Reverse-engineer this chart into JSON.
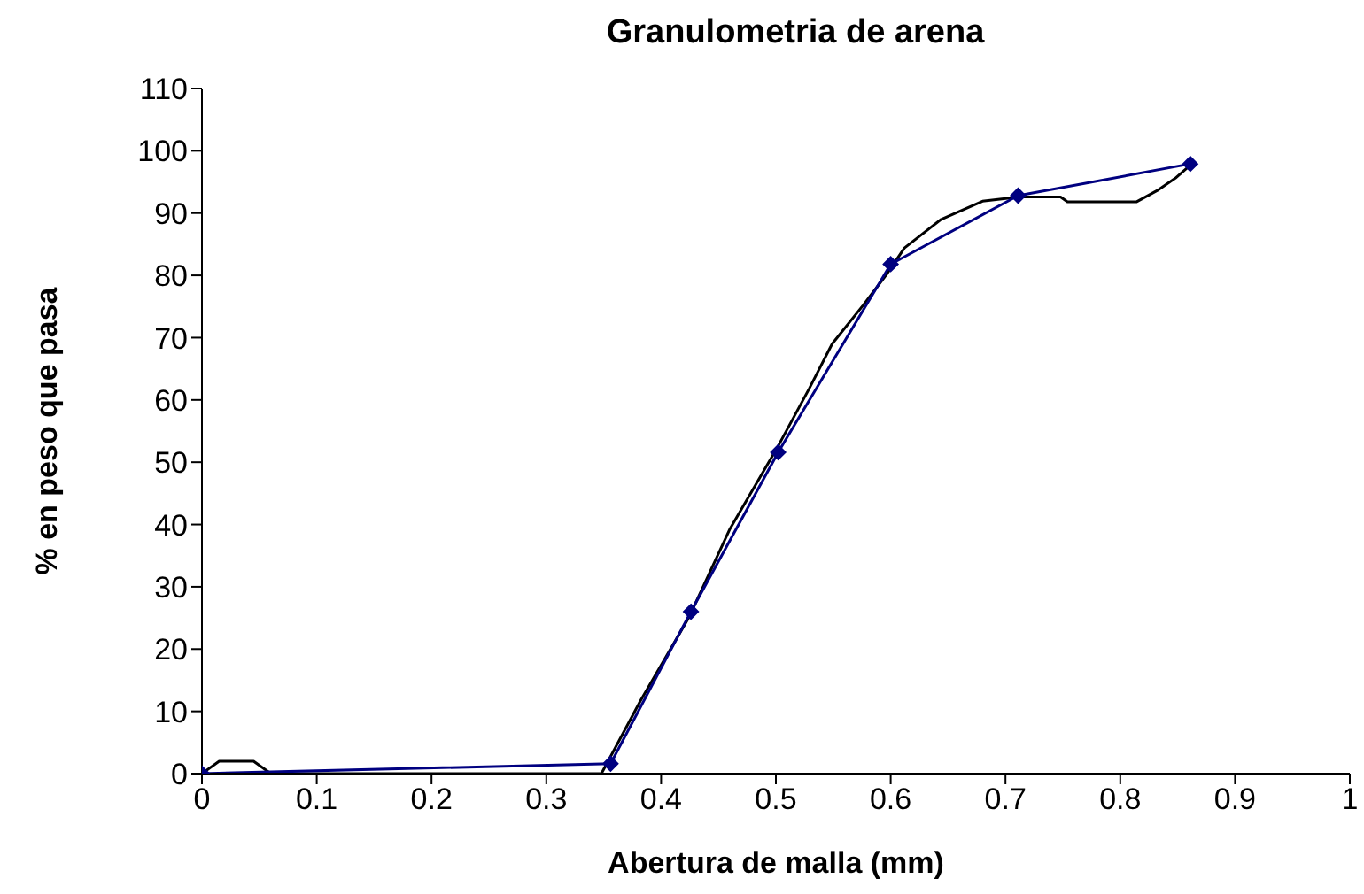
{
  "chart_data": {
    "type": "line",
    "title": "Granulometria de arena",
    "xlabel": "Abertura de malla (mm)",
    "ylabel": "% en peso que pasa",
    "xlim": [
      0,
      1
    ],
    "xticks": [
      0,
      0.1,
      0.2,
      0.3,
      0.4,
      0.5,
      0.6,
      0.7,
      0.8,
      0.9,
      1
    ],
    "ylim": [
      0,
      110
    ],
    "yticks": [
      0,
      10,
      20,
      30,
      40,
      50,
      60,
      70,
      80,
      90,
      100,
      110
    ],
    "grid": false,
    "series": [
      {
        "color": "#000000",
        "marker": "none",
        "x": [
          0,
          0.015,
          0.045,
          0.06,
          0.348,
          0.382,
          0.424,
          0.46,
          0.502,
          0.529,
          0.549,
          0.576,
          0.597,
          0.612,
          0.644,
          0.68,
          0.712,
          0.748,
          0.754,
          0.814,
          0.832,
          0.848,
          0.861
        ],
        "values": [
          0,
          2,
          2,
          0,
          0,
          11.7,
          25,
          39.3,
          52.6,
          61.8,
          69,
          75.2,
          80.3,
          84.4,
          89,
          91.9,
          92.6,
          92.6,
          91.8,
          91.8,
          93.6,
          95.6,
          97.7
        ]
      },
      {
        "color": "#000080",
        "marker": "diamond",
        "x": [
          0,
          0.356,
          0.426,
          0.502,
          0.6,
          0.711,
          0.861
        ],
        "values": [
          0,
          1.6,
          26,
          51.6,
          81.8,
          92.8,
          97.9
        ]
      }
    ]
  }
}
